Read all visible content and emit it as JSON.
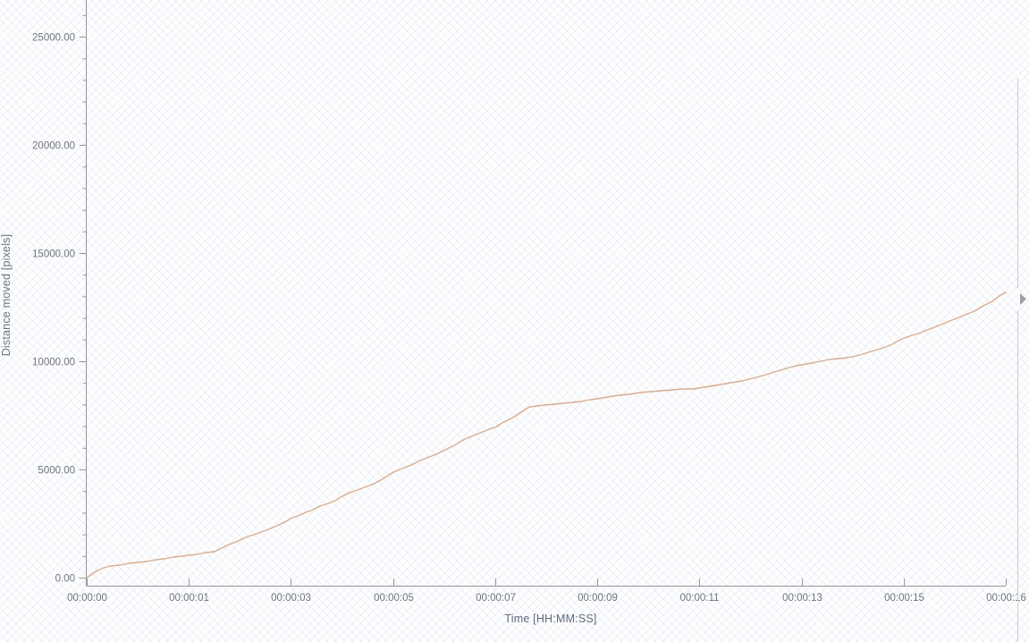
{
  "chart_data": {
    "type": "line",
    "title": "",
    "xlabel": "Time [HH:MM:SS]",
    "ylabel": "Distance moved [pixels]",
    "x_tick_labels": [
      "00:00:00",
      "00:00:01",
      "00:00:03",
      "00:00:05",
      "00:00:07",
      "00:00:09",
      "00:00:11",
      "00:00:13",
      "00:00:15",
      "00:00:16"
    ],
    "y_tick_labels": [
      "0.00",
      "5000.00",
      "10000.00",
      "15000.00",
      "20000.00",
      "25000.00"
    ],
    "y_major_step": 5000,
    "y_minor_step": 1000,
    "ylim": [
      0,
      26700
    ],
    "xlim_seconds": [
      0,
      16.9
    ],
    "grid": "off",
    "legend": "none",
    "background_pattern": "diagonal-crosshatch",
    "series": [
      {
        "name": "Distance moved",
        "color": "#e0ab85",
        "points": [
          [
            0,
            0
          ],
          [
            0.1,
            165
          ],
          [
            0.2,
            331
          ],
          [
            0.31,
            455
          ],
          [
            0.44,
            537
          ],
          [
            0.61,
            579
          ],
          [
            0.77,
            661
          ],
          [
            0.94,
            702
          ],
          [
            1.1,
            744
          ],
          [
            1.27,
            826
          ],
          [
            1.43,
            868
          ],
          [
            1.59,
            950
          ],
          [
            1.76,
            992
          ],
          [
            1.87,
            1033
          ],
          [
            2.02,
            1074
          ],
          [
            2.19,
            1157
          ],
          [
            2.35,
            1198
          ],
          [
            2.48,
            1364
          ],
          [
            2.61,
            1529
          ],
          [
            2.75,
            1653
          ],
          [
            2.88,
            1818
          ],
          [
            3.02,
            1942
          ],
          [
            3.17,
            2066
          ],
          [
            3.34,
            2231
          ],
          [
            3.5,
            2397
          ],
          [
            3.67,
            2603
          ],
          [
            3.75,
            2727
          ],
          [
            3.88,
            2851
          ],
          [
            4.03,
            3017
          ],
          [
            4.16,
            3140
          ],
          [
            4.29,
            3306
          ],
          [
            4.44,
            3430
          ],
          [
            4.57,
            3554
          ],
          [
            4.7,
            3760
          ],
          [
            4.83,
            3926
          ],
          [
            4.98,
            4050
          ],
          [
            5.11,
            4174
          ],
          [
            5.24,
            4298
          ],
          [
            5.38,
            4463
          ],
          [
            5.51,
            4669
          ],
          [
            5.64,
            4876
          ],
          [
            5.8,
            5041
          ],
          [
            5.97,
            5207
          ],
          [
            6.13,
            5413
          ],
          [
            6.3,
            5579
          ],
          [
            6.46,
            5744
          ],
          [
            6.63,
            5950
          ],
          [
            6.79,
            6157
          ],
          [
            6.95,
            6405
          ],
          [
            7.12,
            6570
          ],
          [
            7.28,
            6736
          ],
          [
            7.4,
            6859
          ],
          [
            7.51,
            6942
          ],
          [
            7.64,
            7149
          ],
          [
            7.78,
            7314
          ],
          [
            7.91,
            7520
          ],
          [
            8.01,
            7686
          ],
          [
            8.09,
            7810
          ],
          [
            8.15,
            7893
          ],
          [
            8.27,
            7934
          ],
          [
            8.43,
            7975
          ],
          [
            8.6,
            8016
          ],
          [
            8.76,
            8058
          ],
          [
            8.93,
            8099
          ],
          [
            9.09,
            8140
          ],
          [
            9.26,
            8223
          ],
          [
            9.39,
            8264
          ],
          [
            9.58,
            8347
          ],
          [
            9.78,
            8430
          ],
          [
            9.98,
            8471
          ],
          [
            10.18,
            8554
          ],
          [
            10.37,
            8595
          ],
          [
            10.57,
            8636
          ],
          [
            10.77,
            8678
          ],
          [
            10.97,
            8719
          ],
          [
            11.15,
            8719
          ],
          [
            11.26,
            8760
          ],
          [
            11.46,
            8843
          ],
          [
            11.66,
            8926
          ],
          [
            11.85,
            9008
          ],
          [
            12.05,
            9091
          ],
          [
            12.25,
            9215
          ],
          [
            12.44,
            9339
          ],
          [
            12.64,
            9504
          ],
          [
            12.87,
            9669
          ],
          [
            13.04,
            9793
          ],
          [
            13.15,
            9835
          ],
          [
            13.33,
            9917
          ],
          [
            13.5,
            10000
          ],
          [
            13.66,
            10083
          ],
          [
            13.83,
            10124
          ],
          [
            13.99,
            10165
          ],
          [
            14.16,
            10248
          ],
          [
            14.32,
            10372
          ],
          [
            14.48,
            10496
          ],
          [
            14.65,
            10620
          ],
          [
            14.81,
            10785
          ],
          [
            14.93,
            10951
          ],
          [
            15.03,
            11074
          ],
          [
            15.18,
            11198
          ],
          [
            15.34,
            11322
          ],
          [
            15.5,
            11488
          ],
          [
            15.67,
            11653
          ],
          [
            15.83,
            11818
          ],
          [
            16.0,
            11983
          ],
          [
            16.16,
            12149
          ],
          [
            16.32,
            12314
          ],
          [
            16.49,
            12562
          ],
          [
            16.65,
            12769
          ],
          [
            16.78,
            13017
          ],
          [
            16.9,
            13182
          ]
        ]
      }
    ]
  },
  "colors": {
    "axis": "#94989e",
    "tick_label": "#6f757d",
    "axis_title": "#5d6b80",
    "series_line": "#e0ab85",
    "scroll_track": "#c9cdd2",
    "scroll_thumb": "#9aa0a6",
    "pattern_line": "#e4e9f7",
    "background": "#ffffff"
  },
  "scrollbar": {
    "orientation": "vertical",
    "thumb_icon": "right-arrow"
  }
}
